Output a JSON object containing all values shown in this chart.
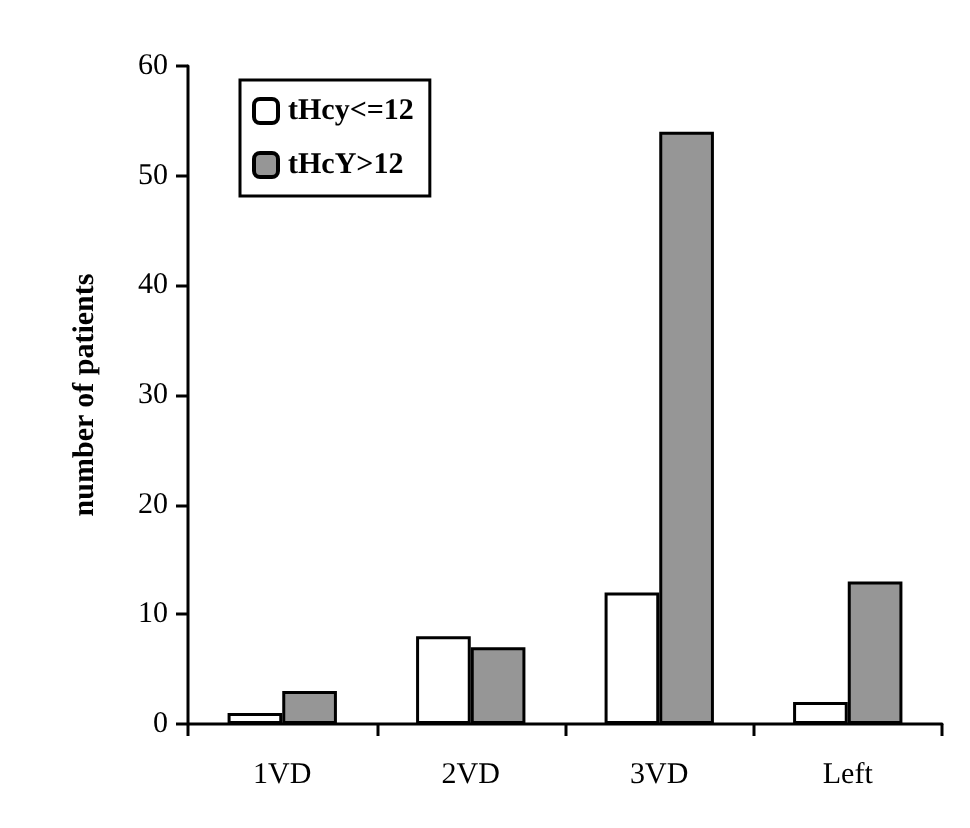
{
  "chart_data": {
    "type": "bar",
    "ylabel": "number of patients",
    "categories": [
      "1VD",
      "2VD",
      "3VD",
      "Left"
    ],
    "series": [
      {
        "name": "tHcy<=12",
        "color": "#ffffff",
        "values": [
          1,
          8,
          12,
          2
        ]
      },
      {
        "name": "tHcY>12",
        "color": "#969696",
        "values": [
          3,
          7,
          54,
          13
        ]
      }
    ],
    "ylim": [
      0,
      60
    ],
    "yticks": [
      0,
      10,
      20,
      30,
      40,
      50,
      60
    ],
    "grid": false,
    "legend": "top left"
  }
}
